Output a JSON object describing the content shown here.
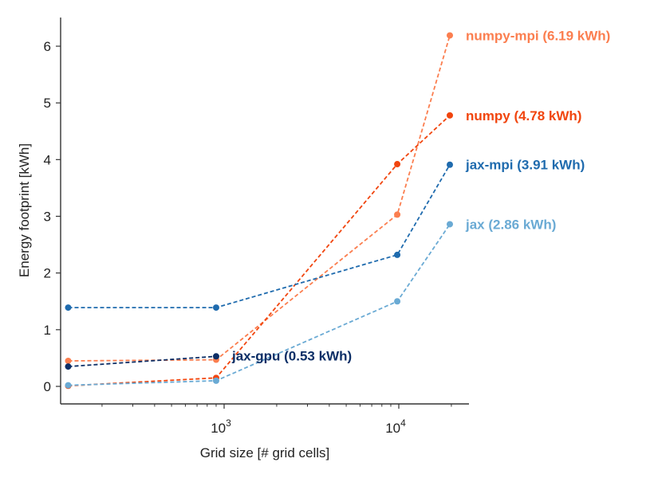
{
  "chart_data": {
    "type": "line",
    "xlabel": "Grid size [# grid cells]",
    "ylabel": "Energy footprint [kWh]",
    "xscale": "log",
    "xlim": [
      100,
      30000
    ],
    "ylim": [
      -0.3,
      6.5
    ],
    "x_ticks": [
      {
        "value": 1000,
        "base": "10",
        "exp": "3"
      },
      {
        "value": 10000,
        "base": "10",
        "exp": "4"
      }
    ],
    "y_ticks": [
      0,
      1,
      2,
      3,
      4,
      5,
      6
    ],
    "grid": false,
    "line_style": "dashed",
    "series": [
      {
        "name": "numpy-mpi",
        "label": "numpy-mpi (6.19 kWh)",
        "color": "#fb7e4f",
        "x": [
          128,
          900,
          9800,
          19600
        ],
        "y": [
          0.45,
          0.47,
          3.03,
          6.19
        ]
      },
      {
        "name": "numpy",
        "label": "numpy (4.78 kWh)",
        "color": "#f1450e",
        "x": [
          128,
          900,
          9800,
          19600
        ],
        "y": [
          0.01,
          0.15,
          3.92,
          4.78
        ]
      },
      {
        "name": "jax-mpi",
        "label": "jax-mpi (3.91 kWh)",
        "color": "#1f6bae",
        "x": [
          128,
          900,
          9800,
          19600
        ],
        "y": [
          1.39,
          1.39,
          2.32,
          3.91
        ]
      },
      {
        "name": "jax",
        "label": "jax (2.86 kWh)",
        "color": "#6aaad4",
        "x": [
          128,
          900,
          9800,
          19600
        ],
        "y": [
          0.02,
          0.1,
          1.5,
          2.86
        ]
      },
      {
        "name": "jax-gpu",
        "label": "jax-gpu (0.53 kWh)",
        "color": "#0c2e66",
        "x": [
          128,
          900
        ],
        "y": [
          0.35,
          0.53
        ]
      }
    ]
  }
}
